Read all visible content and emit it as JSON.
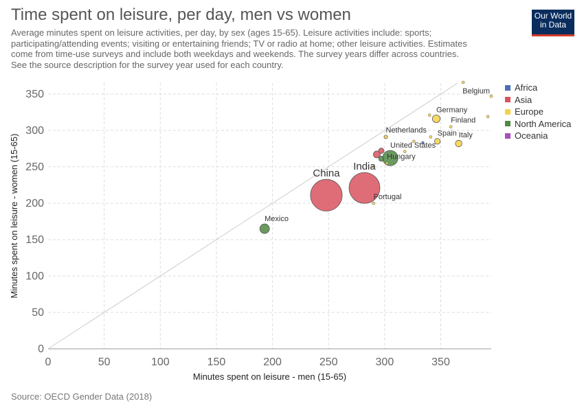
{
  "header": {
    "title": "Time spent on leisure, per day, men vs women",
    "subtitle": "Average minutes spent on leisure activities, per day, by sex (ages 15-65). Leisure activities include: sports;\nparticipating/attending events; visiting or entertaining friends; TV or radio at home; other leisure activities. Estimates\ncome from time-use surveys and include both weekdays and weekends. The survey years differ across countries.\nSee the source description for the survey year used for each country.",
    "logo_line1": "Our World",
    "logo_line2": "in Data"
  },
  "footer": {
    "source": "Source: OECD Gender Data (2018)"
  },
  "legend": [
    {
      "label": "Africa",
      "color": "#4c6fb5"
    },
    {
      "label": "Asia",
      "color": "#d9535f"
    },
    {
      "label": "Europe",
      "color": "#f6d24a"
    },
    {
      "label": "North America",
      "color": "#4f8a44"
    },
    {
      "label": "Oceania",
      "color": "#a652ba"
    }
  ],
  "chart_data": {
    "type": "scatter",
    "xlabel": "Minutes spent on leisure - men (15-65)",
    "ylabel": "Minutes spent on leisure - women (15-65)",
    "xlim": [
      0,
      395
    ],
    "ylim": [
      0,
      365
    ],
    "xticks": [
      0,
      50,
      100,
      150,
      200,
      250,
      300,
      350
    ],
    "yticks": [
      0,
      50,
      100,
      150,
      200,
      250,
      300,
      350
    ],
    "grid": true,
    "reference_line": "y = x",
    "legend_position": "right",
    "points": [
      {
        "label": "China",
        "x": 248,
        "y": 211,
        "region": "Asia",
        "size": 1385
      },
      {
        "label": "India",
        "x": 282,
        "y": 221,
        "region": "Asia",
        "size": 1310
      },
      {
        "label": "Mexico",
        "x": 193,
        "y": 165,
        "region": "North America",
        "size": 127
      },
      {
        "label": "Portugal",
        "x": 290,
        "y": 200,
        "region": "Europe",
        "size": 10
      },
      {
        "label": "Hungary",
        "x": 302,
        "y": 255,
        "region": "Europe",
        "size": 10
      },
      {
        "label": "United States",
        "x": 305,
        "y": 262,
        "region": "North America",
        "size": 325
      },
      {
        "label": "Netherlands",
        "x": 301,
        "y": 291,
        "region": "Europe",
        "size": 17
      },
      {
        "label": "Spain",
        "x": 347,
        "y": 285,
        "region": "Europe",
        "size": 46
      },
      {
        "label": "Italy",
        "x": 366,
        "y": 282,
        "region": "Europe",
        "size": 60
      },
      {
        "label": "Germany",
        "x": 346,
        "y": 316,
        "region": "Europe",
        "size": 82
      },
      {
        "label": "Finland",
        "x": 359,
        "y": 305,
        "region": "Europe",
        "size": 5
      },
      {
        "label": "Belgium",
        "x": 395,
        "y": 347,
        "region": "Europe",
        "size": 11
      },
      {
        "label": "",
        "x": 297,
        "y": 272,
        "region": "Asia",
        "size": 40
      },
      {
        "label": "",
        "x": 293,
        "y": 267,
        "region": "Asia",
        "size": 65
      },
      {
        "label": "",
        "x": 297,
        "y": 261,
        "region": "North America",
        "size": 36
      },
      {
        "label": "",
        "x": 334,
        "y": 283,
        "region": "Africa",
        "size": 10
      },
      {
        "label": "",
        "x": 318,
        "y": 271,
        "region": "Europe",
        "size": 10
      },
      {
        "label": "",
        "x": 326,
        "y": 285,
        "region": "Europe",
        "size": 5
      },
      {
        "label": "",
        "x": 341,
        "y": 291,
        "region": "Europe",
        "size": 5
      },
      {
        "label": "",
        "x": 340,
        "y": 321,
        "region": "Europe",
        "size": 5
      },
      {
        "label": "",
        "x": 370,
        "y": 366,
        "region": "Europe",
        "size": 5
      },
      {
        "label": "",
        "x": 392,
        "y": 319,
        "region": "Europe",
        "size": 5
      },
      {
        "label": "",
        "x": 290,
        "y": 250,
        "region": "Europe",
        "size": 5
      }
    ]
  }
}
